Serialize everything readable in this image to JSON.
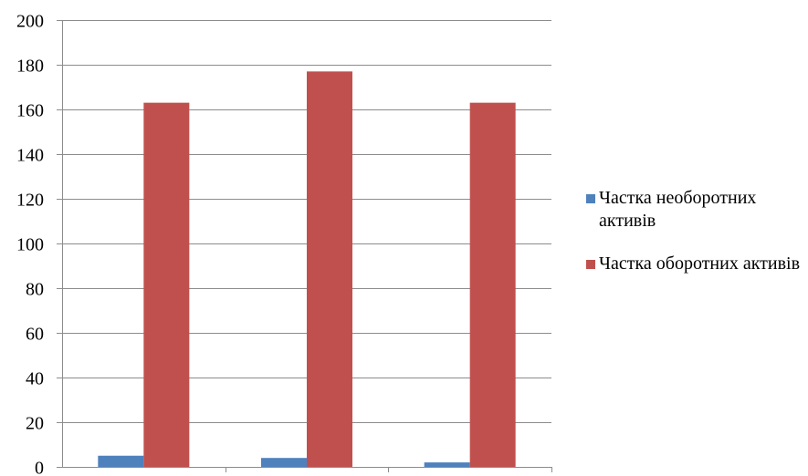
{
  "chart_data": {
    "type": "bar",
    "title": "",
    "xlabel": "",
    "ylabel": "",
    "categories": [
      "",
      "",
      ""
    ],
    "series": [
      {
        "name": "Частка необоротних активів",
        "color": "#4f81bd",
        "values": [
          5,
          4,
          2
        ]
      },
      {
        "name": "Частка оборотних активів",
        "color": "#c0504d",
        "values": [
          163,
          177,
          163
        ]
      }
    ],
    "ylim": [
      0,
      200
    ],
    "yticks": [
      "0",
      "20",
      "40",
      "60",
      "80",
      "100",
      "120",
      "140",
      "160",
      "180",
      "200"
    ],
    "grid": true,
    "legend_position": "right"
  }
}
